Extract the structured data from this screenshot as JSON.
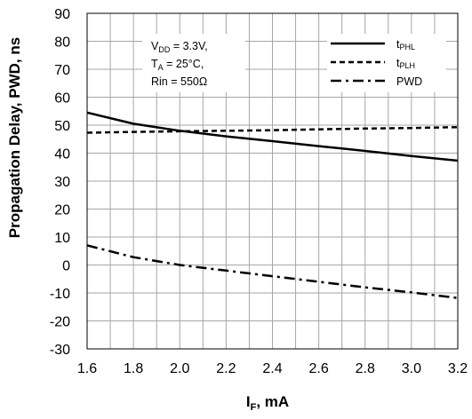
{
  "chart_data": {
    "type": "line",
    "xlabel": "I",
    "xlabel_sub": "F",
    "xlabel_unit": ", mA",
    "ylabel": "Propagation Delay, PWD, ns",
    "xlim": [
      1.6,
      3.2
    ],
    "ylim": [
      -30,
      90
    ],
    "xticks": [
      "1.6",
      "1.8",
      "2.0",
      "2.2",
      "2.4",
      "2.6",
      "2.8",
      "3.0",
      "3.2"
    ],
    "yticks": [
      "90",
      "80",
      "70",
      "60",
      "50",
      "40",
      "30",
      "20",
      "10",
      "0",
      "-10",
      "-20",
      "-30"
    ],
    "x_minor_step": 0.1,
    "y_step": 10,
    "grid": true,
    "legend_position": "top-right",
    "series": [
      {
        "name": "t",
        "sub": "PHL",
        "style": "solid",
        "x": [
          1.6,
          1.8,
          2.0,
          2.2,
          2.4,
          2.6,
          2.8,
          3.0,
          3.2
        ],
        "y": [
          54.5,
          50.5,
          48.0,
          46.0,
          44.3,
          42.5,
          40.8,
          39.0,
          37.3
        ]
      },
      {
        "name": "t",
        "sub": "PLH",
        "style": "dashed",
        "x": [
          1.6,
          1.8,
          2.0,
          2.2,
          2.4,
          2.6,
          2.8,
          3.0,
          3.2
        ],
        "y": [
          47.3,
          47.6,
          47.8,
          48.0,
          48.2,
          48.5,
          48.8,
          49.0,
          49.3
        ]
      },
      {
        "name": "PWD",
        "sub": "",
        "style": "dashdot",
        "x": [
          1.6,
          1.8,
          2.0,
          2.2,
          2.4,
          2.6,
          2.8,
          3.0,
          3.2
        ],
        "y": [
          7.0,
          2.8,
          0.0,
          -2.0,
          -4.0,
          -6.0,
          -8.0,
          -9.8,
          -11.8
        ]
      }
    ],
    "annotation": [
      {
        "main": "V",
        "sub": "DD",
        "rest": " = 3.3V,"
      },
      {
        "main": "T",
        "sub": "A",
        "rest": " = 25°C,"
      },
      {
        "main": "Rin = 550Ω",
        "sub": "",
        "rest": ""
      }
    ]
  }
}
